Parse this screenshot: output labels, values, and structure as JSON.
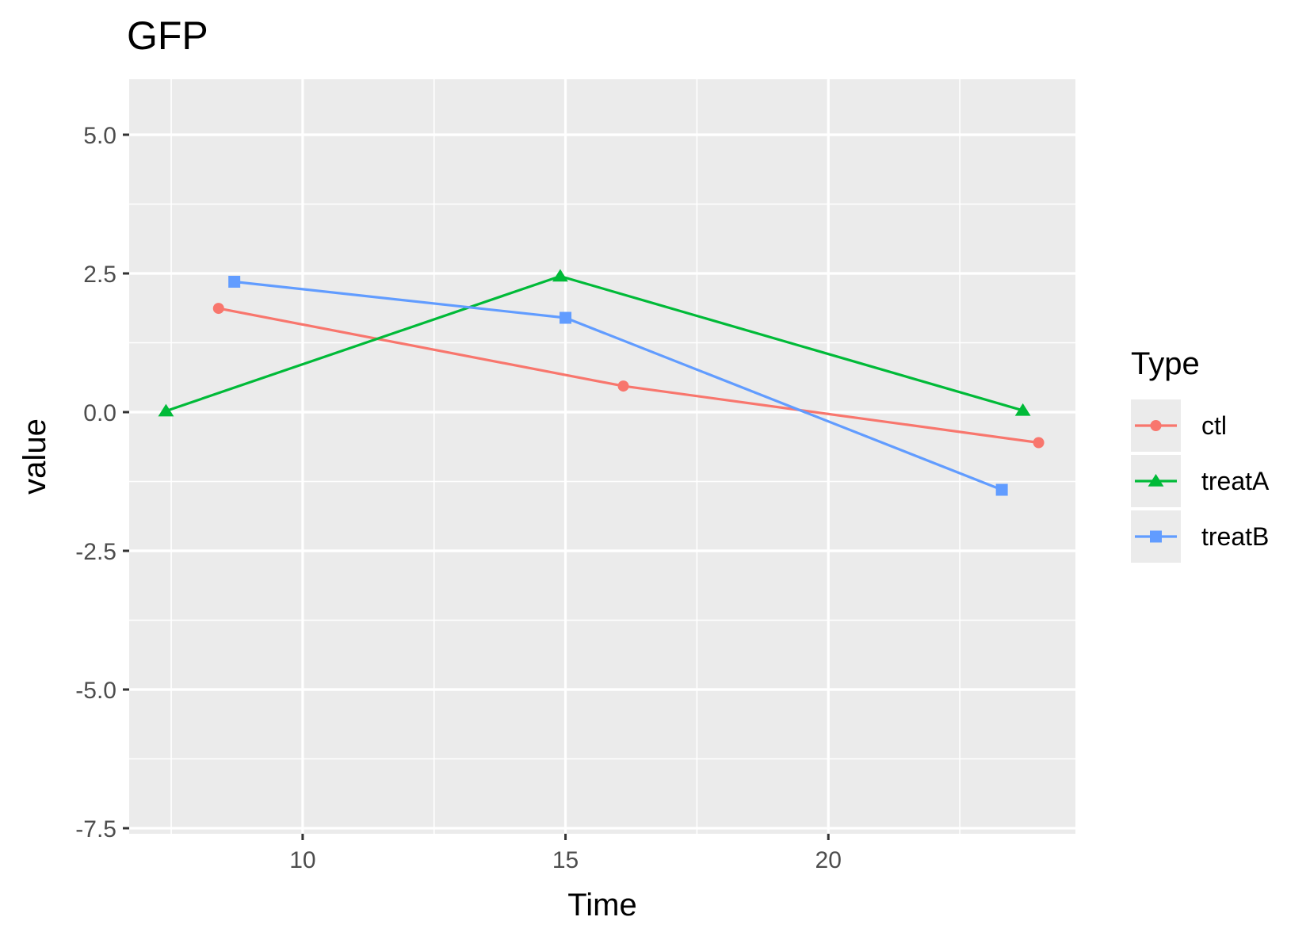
{
  "chart_data": {
    "type": "line",
    "title": "GFP",
    "xlabel": "Time",
    "ylabel": "value",
    "xlim": [
      6.7,
      24.7
    ],
    "ylim": [
      -7.6,
      6.0
    ],
    "x_ticks": [
      10,
      15,
      20
    ],
    "x_tick_labels": [
      "10",
      "15",
      "20"
    ],
    "y_ticks": [
      5.0,
      2.5,
      0.0,
      -2.5,
      -5.0,
      -7.5
    ],
    "y_tick_labels": [
      "5.0",
      "2.5",
      "0.0",
      "-2.5",
      "-5.0",
      "-7.5"
    ],
    "grid": true,
    "legend": {
      "title": "Type",
      "position": "right"
    },
    "series": [
      {
        "name": "ctl",
        "color": "#F8766D",
        "marker": "circle",
        "x": [
          8.4,
          16.1,
          24.0
        ],
        "y": [
          1.87,
          0.47,
          -0.55
        ]
      },
      {
        "name": "treatA",
        "color": "#00BA38",
        "marker": "triangle",
        "x": [
          7.4,
          14.9,
          23.7
        ],
        "y": [
          0.02,
          2.45,
          0.03
        ]
      },
      {
        "name": "treatB",
        "color": "#619CFF",
        "marker": "square",
        "x": [
          8.7,
          15.0,
          23.3
        ],
        "y": [
          2.35,
          1.7,
          -1.4
        ]
      }
    ]
  }
}
